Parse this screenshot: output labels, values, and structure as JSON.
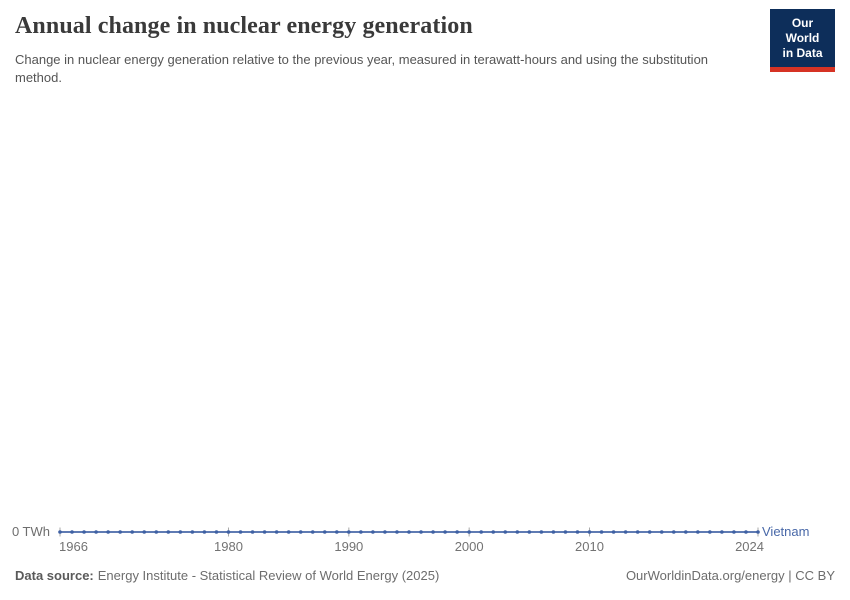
{
  "header": {
    "title": "Annual change in nuclear energy generation",
    "subtitle": "Change in nuclear energy generation relative to the previous year, measured in terawatt-hours and using the substitution method.",
    "logo": {
      "line1": "Our World",
      "line2": "in Data"
    }
  },
  "chart_data": {
    "type": "line",
    "title": "Annual change in nuclear energy generation",
    "unit": "terawatt-hours",
    "grid": false,
    "marker": "circle",
    "legend_position": "end-of-line",
    "y_zero_label": "0 TWh",
    "x_ticks": [
      1966,
      1980,
      1990,
      2000,
      2010,
      2024
    ],
    "x": [
      1966,
      1967,
      1968,
      1969,
      1970,
      1971,
      1972,
      1973,
      1974,
      1975,
      1976,
      1977,
      1978,
      1979,
      1980,
      1981,
      1982,
      1983,
      1984,
      1985,
      1986,
      1987,
      1988,
      1989,
      1990,
      1991,
      1992,
      1993,
      1994,
      1995,
      1996,
      1997,
      1998,
      1999,
      2000,
      2001,
      2002,
      2003,
      2004,
      2005,
      2006,
      2007,
      2008,
      2009,
      2010,
      2011,
      2012,
      2013,
      2014,
      2015,
      2016,
      2017,
      2018,
      2019,
      2020,
      2021,
      2022,
      2023,
      2024
    ],
    "series": [
      {
        "name": "Vietnam",
        "color": "#4868a8",
        "values": [
          0,
          0,
          0,
          0,
          0,
          0,
          0,
          0,
          0,
          0,
          0,
          0,
          0,
          0,
          0,
          0,
          0,
          0,
          0,
          0,
          0,
          0,
          0,
          0,
          0,
          0,
          0,
          0,
          0,
          0,
          0,
          0,
          0,
          0,
          0,
          0,
          0,
          0,
          0,
          0,
          0,
          0,
          0,
          0,
          0,
          0,
          0,
          0,
          0,
          0,
          0,
          0,
          0,
          0,
          0,
          0,
          0,
          0,
          0
        ]
      }
    ]
  },
  "colors": {
    "line": "#4868a8",
    "marker": "#3f61a4",
    "series_label": "#4868a8",
    "axis_text": "#737373",
    "zero_label": "#6e6e6e",
    "tick": "#a9a9a9",
    "logo_bg": "#0d2e5a",
    "logo_stripe": "#d63324"
  },
  "footer": {
    "data_source_label": "Data source:",
    "data_source_text": "Energy Institute - Statistical Review of World Energy (2025)",
    "attribution": "OurWorldinData.org/energy | CC BY"
  }
}
